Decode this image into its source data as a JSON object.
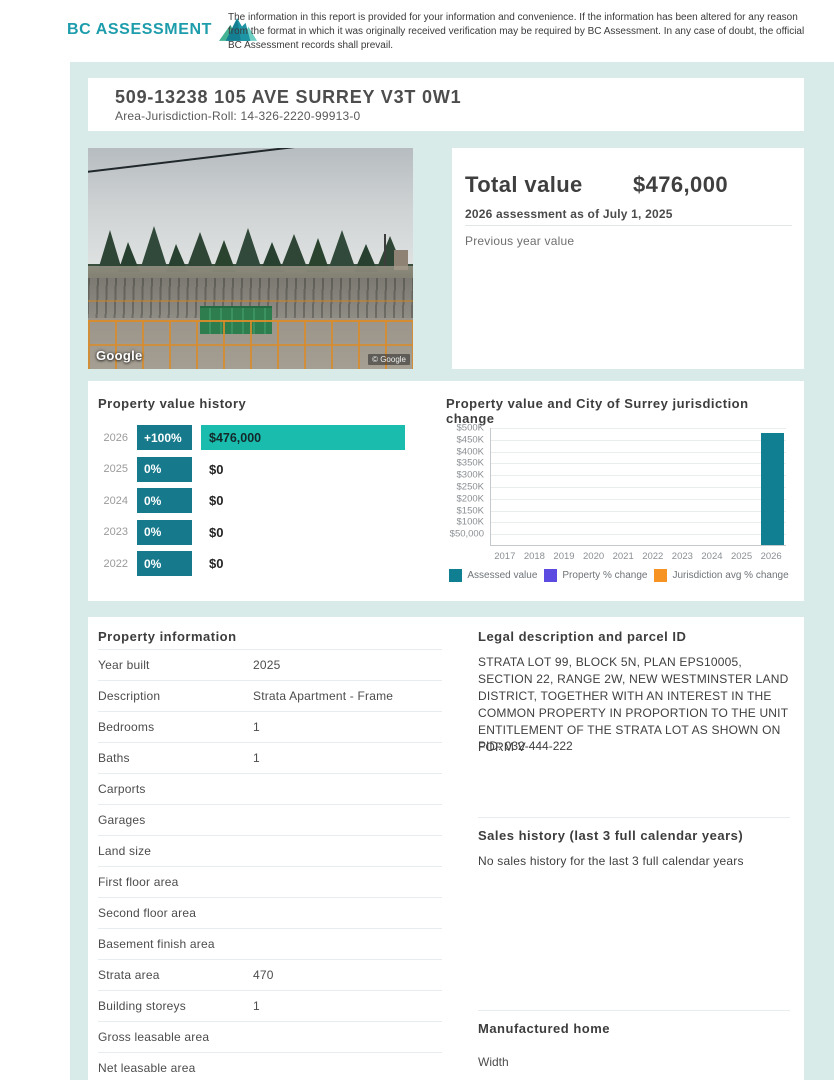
{
  "header": {
    "logo_text": "BC ASSESSMENT",
    "disclaimer": "The information in this report is provided for your information and convenience. If the information has been altered for any reason from the format in which it was originally received verification may be required by BC Assessment. In any case of doubt, the official BC Assessment records shall prevail."
  },
  "property": {
    "title": "509-13238 105 AVE SURREY V3T 0W1",
    "roll": "Area-Jurisdiction-Roll: 14-326-2220-99913-0"
  },
  "photo": {
    "watermark": "Google",
    "copyright": "© Google"
  },
  "total_value": {
    "label": "Total value",
    "value": "$476,000",
    "assessment_note": "2026 assessment as of July 1, 2025",
    "previous_label": "Previous year value"
  },
  "value_history": {
    "title": "Property value history",
    "rows": [
      {
        "year": "2026",
        "change": "+100%",
        "value": "$476,000",
        "bar": true
      },
      {
        "year": "2025",
        "change": "0%",
        "value": "$0",
        "bar": false
      },
      {
        "year": "2024",
        "change": "0%",
        "value": "$0",
        "bar": false
      },
      {
        "year": "2023",
        "change": "0%",
        "value": "$0",
        "bar": false
      },
      {
        "year": "2022",
        "change": "0%",
        "value": "$0",
        "bar": false
      }
    ]
  },
  "chart_data": {
    "type": "bar",
    "title": "Property value and City of Surrey jurisdiction change",
    "categories": [
      "2017",
      "2018",
      "2019",
      "2020",
      "2021",
      "2022",
      "2023",
      "2024",
      "2025",
      "2026"
    ],
    "series": [
      {
        "name": "Assessed value",
        "color": "#107f91",
        "values": [
          null,
          null,
          null,
          null,
          null,
          null,
          null,
          null,
          null,
          476000
        ]
      },
      {
        "name": "Property % change",
        "color": "#5b4be0",
        "values": []
      },
      {
        "name": "Jurisdiction avg % change",
        "color": "#f79322",
        "values": []
      }
    ],
    "ylim": [
      0,
      500000
    ],
    "y_ticks": [
      "$500K",
      "$450K",
      "$400K",
      "$350K",
      "$300K",
      "$250K",
      "$200K",
      "$150K",
      "$100K",
      "$50,000"
    ],
    "y_tick_values": [
      500000,
      450000,
      400000,
      350000,
      300000,
      250000,
      200000,
      150000,
      100000,
      50000
    ],
    "grid": true,
    "legend_position": "bottom"
  },
  "property_information": {
    "title": "Property information",
    "rows": [
      {
        "label": "Year built",
        "value": "2025"
      },
      {
        "label": "Description",
        "value": "Strata Apartment - Frame"
      },
      {
        "label": "Bedrooms",
        "value": "1"
      },
      {
        "label": "Baths",
        "value": "1"
      },
      {
        "label": "Carports",
        "value": ""
      },
      {
        "label": "Garages",
        "value": ""
      },
      {
        "label": "Land size",
        "value": ""
      },
      {
        "label": "First floor area",
        "value": ""
      },
      {
        "label": "Second floor area",
        "value": ""
      },
      {
        "label": "Basement finish area",
        "value": ""
      },
      {
        "label": "Strata area",
        "value": "470"
      },
      {
        "label": "Building storeys",
        "value": "1"
      },
      {
        "label": "Gross leasable area",
        "value": ""
      },
      {
        "label": "Net leasable area",
        "value": ""
      }
    ]
  },
  "legal": {
    "title": "Legal description and parcel ID",
    "description": "STRATA LOT 99, BLOCK 5N, PLAN EPS10005, SECTION 22, RANGE 2W, NEW WESTMINSTER LAND DISTRICT, TOGETHER WITH AN INTEREST IN THE COMMON PROPERTY IN PROPORTION TO THE UNIT ENTITLEMENT OF THE STRATA LOT AS SHOWN ON FORM V",
    "pid": "PID: 032-444-222"
  },
  "sales_history": {
    "title": "Sales history (last 3 full calendar years)",
    "empty_message": "No sales history for the last 3 full calendar years"
  },
  "manufactured_home": {
    "title": "Manufactured home",
    "width_label": "Width"
  },
  "colors": {
    "page_background": "#d9ebe8",
    "brand_teal": "#1d9dab",
    "badge_teal": "#16798c",
    "value_bar_teal": "#1abcad",
    "chart_bar_teal": "#107f91",
    "legend_purple": "#5b4be0",
    "legend_orange": "#f79322"
  }
}
